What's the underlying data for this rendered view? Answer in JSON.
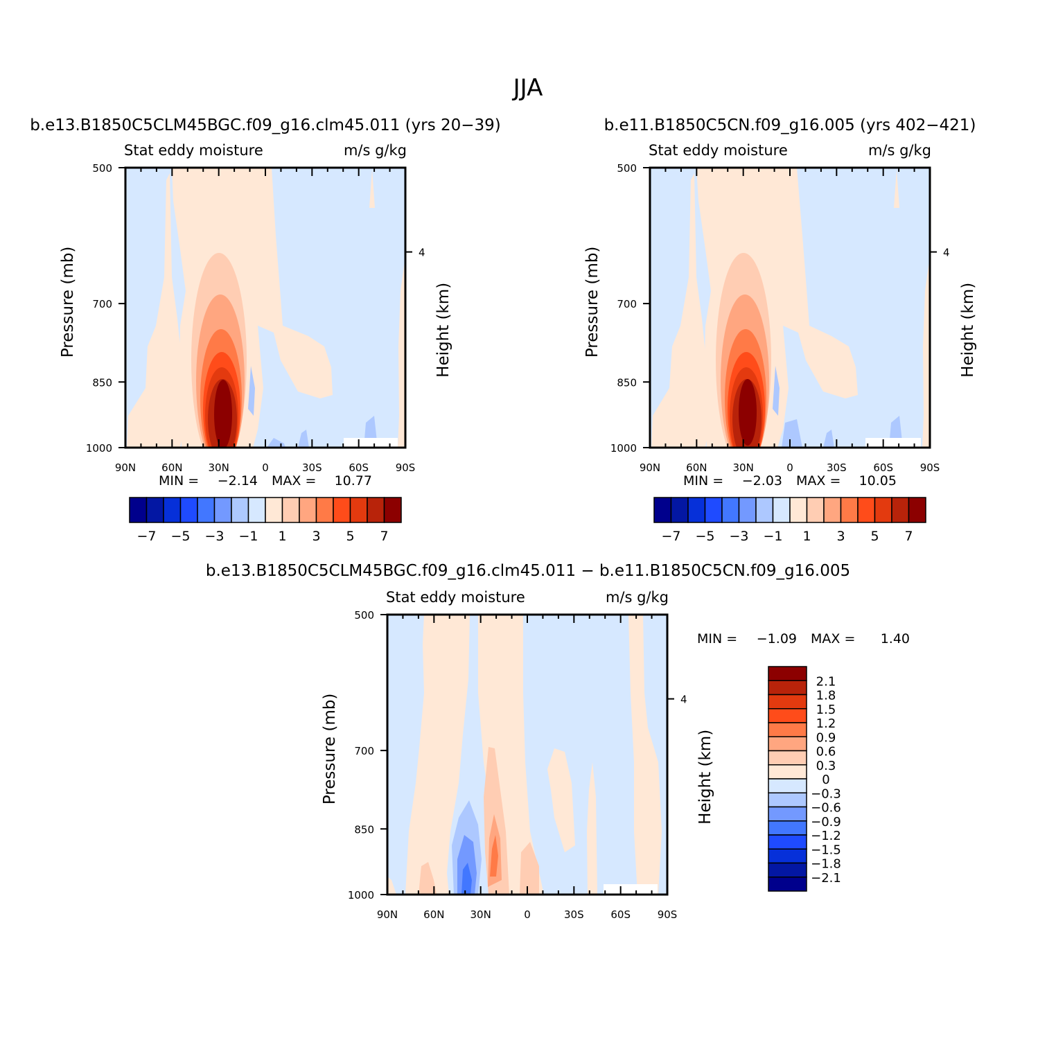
{
  "figure_title": "JJA",
  "colors": {
    "blues": [
      "#00008c",
      "#0317a3",
      "#0630d9",
      "#1f4bff",
      "#4277ff",
      "#7399ff",
      "#adc8ff",
      "#d6e8ff"
    ],
    "reds": [
      "#ffe8d6",
      "#ffcdb3",
      "#ffa680",
      "#ff7a47",
      "#ff4c1a",
      "#e33a0f",
      "#b8230a",
      "#8c0000"
    ]
  },
  "chart_data": [
    {
      "type": "heatmap",
      "id": "p1",
      "title": "b.e13.B1850C5CLM45BGC.f09_g16.clm45.011 (yrs 20−39)",
      "left_label": "Stat eddy moisture",
      "right_label": "m/s g/kg",
      "xlabel": "",
      "ylabel": "Pressure (mb)",
      "y2label": "Height (km)",
      "x_ticks": [
        "90N",
        "60N",
        "30N",
        "0",
        "30S",
        "60S",
        "90S"
      ],
      "y_ticks": [
        "500",
        "700",
        "850",
        "1000"
      ],
      "y2_ticks": [
        "4"
      ],
      "min_text": "MIN =",
      "min_value": "−2.14",
      "max_text": "MAX =",
      "max_value": "10.77",
      "colorbar_labels": [
        "−7",
        "−5",
        "−3",
        "−1",
        "1",
        "3",
        "5",
        "7"
      ],
      "levels": [
        -7,
        -6,
        -5,
        -4,
        -3,
        -2,
        -1,
        0,
        1,
        2,
        3,
        4,
        5,
        6,
        7
      ]
    },
    {
      "type": "heatmap",
      "id": "p2",
      "title": "b.e11.B1850C5CN.f09_g16.005 (yrs 402−421)",
      "left_label": "Stat eddy moisture",
      "right_label": "m/s g/kg",
      "xlabel": "",
      "ylabel": "Pressure (mb)",
      "y2label": "Height (km)",
      "x_ticks": [
        "90N",
        "60N",
        "30N",
        "0",
        "30S",
        "60S",
        "90S"
      ],
      "y_ticks": [
        "500",
        "700",
        "850",
        "1000"
      ],
      "y2_ticks": [
        "4"
      ],
      "min_text": "MIN =",
      "min_value": "−2.03",
      "max_text": "MAX =",
      "max_value": "10.05",
      "colorbar_labels": [
        "−7",
        "−5",
        "−3",
        "−1",
        "1",
        "3",
        "5",
        "7"
      ],
      "levels": [
        -7,
        -6,
        -5,
        -4,
        -3,
        -2,
        -1,
        0,
        1,
        2,
        3,
        4,
        5,
        6,
        7
      ]
    },
    {
      "type": "heatmap",
      "id": "p3",
      "title": "b.e13.B1850C5CLM45BGC.f09_g16.clm45.011 − b.e11.B1850C5CN.f09_g16.005",
      "left_label": "Stat eddy moisture",
      "right_label": "m/s g/kg",
      "xlabel": "",
      "ylabel": "Pressure (mb)",
      "y2label": "Height (km)",
      "x_ticks": [
        "90N",
        "60N",
        "30N",
        "0",
        "30S",
        "60S",
        "90S"
      ],
      "y_ticks": [
        "500",
        "700",
        "850",
        "1000"
      ],
      "y2_ticks": [
        "4"
      ],
      "min_text": "MIN =",
      "min_value": "−1.09",
      "max_text": "MAX =",
      "max_value": "1.40",
      "colorbar_labels": [
        "2.1",
        "1.8",
        "1.5",
        "1.2",
        "0.9",
        "0.6",
        "0.3",
        "0",
        "−0.3",
        "−0.6",
        "−0.9",
        "−1.2",
        "−1.5",
        "−1.8",
        "−2.1"
      ],
      "levels": [
        -2.1,
        -1.8,
        -1.5,
        -1.2,
        -0.9,
        -0.6,
        -0.3,
        0,
        0.3,
        0.6,
        0.9,
        1.2,
        1.5,
        1.8,
        2.1
      ]
    }
  ]
}
